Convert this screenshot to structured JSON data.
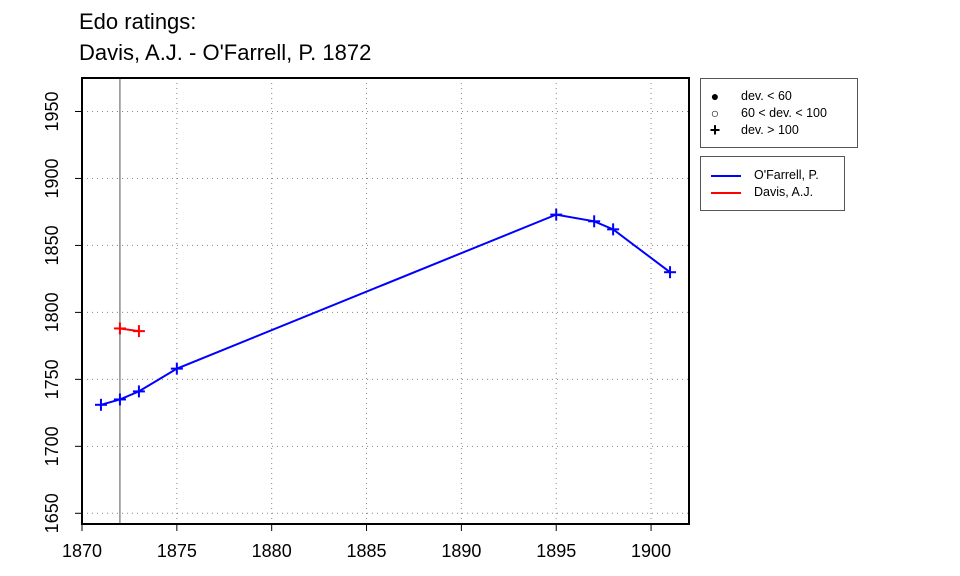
{
  "title_line1": "Edo ratings:",
  "title_line2": "Davis, A.J. - O'Farrell, P. 1872",
  "legend_deviation": [
    {
      "symbol": "●",
      "label": "dev. < 60",
      "icon": "filled-circle-icon"
    },
    {
      "symbol": "○",
      "label": "60 < dev. < 100",
      "icon": "open-circle-icon"
    },
    {
      "symbol": "+",
      "label": "dev. > 100",
      "icon": "plus-icon"
    }
  ],
  "legend_players": [
    {
      "label": "O'Farrell, P.",
      "color": "#0000ff"
    },
    {
      "label": "Davis, A.J.",
      "color": "#ff0000"
    }
  ],
  "chart_data": {
    "type": "line",
    "title": "Edo ratings:\nDavis, A.J. - O'Farrell, P. 1872",
    "xlabel": "",
    "ylabel": "",
    "xlim": [
      1870,
      1902
    ],
    "ylim": [
      1642,
      1975
    ],
    "xticks": [
      1870,
      1875,
      1880,
      1885,
      1890,
      1895,
      1900
    ],
    "yticks": [
      1650,
      1700,
      1750,
      1800,
      1850,
      1900,
      1950
    ],
    "grid": true,
    "vertical_marker_x": 1872,
    "marker": "plus",
    "legend_position": "outside-right",
    "series": [
      {
        "name": "O'Farrell, P.",
        "color": "#0000ff",
        "x": [
          1871,
          1872,
          1873,
          1875,
          1895,
          1897,
          1898,
          1901
        ],
        "y": [
          1731,
          1735,
          1741,
          1758,
          1873,
          1868,
          1862,
          1830
        ]
      },
      {
        "name": "Davis, A.J.",
        "color": "#ff0000",
        "x": [
          1872,
          1873
        ],
        "y": [
          1788,
          1786
        ]
      }
    ]
  }
}
